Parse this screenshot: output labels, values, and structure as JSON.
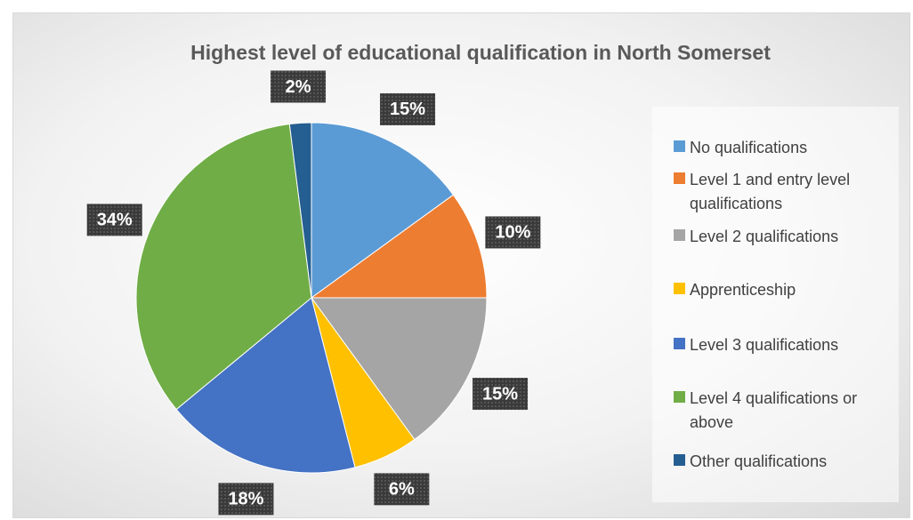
{
  "chart_data": {
    "type": "pie",
    "title": "Highest level of educational qualification in North Somerset",
    "categories": [
      "No qualifications",
      "Level 1 and entry level qualifications",
      "Level 2 qualifications",
      "Apprenticeship",
      "Level 3 qualifications",
      "Level 4 qualifications or above",
      "Other qualifications"
    ],
    "values": [
      15,
      10,
      15,
      6,
      18,
      34,
      2
    ],
    "value_labels": [
      "15%",
      "10%",
      "15%",
      "6%",
      "18%",
      "34%",
      "2%"
    ],
    "colors": [
      "#5b9bd5",
      "#ed7d31",
      "#a5a5a5",
      "#ffc000",
      "#4472c4",
      "#70ad47",
      "#255e91"
    ],
    "legend": "right"
  }
}
